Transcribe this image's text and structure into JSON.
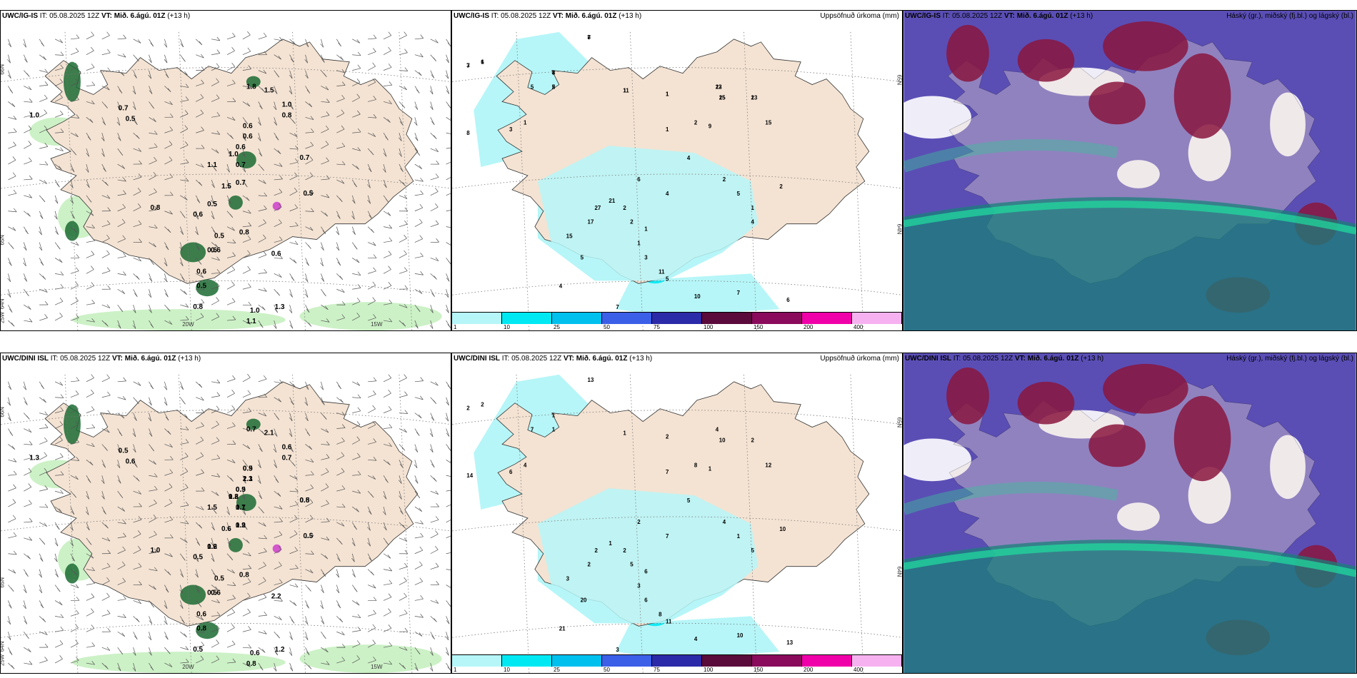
{
  "colors": {
    "land": "#f4e3d3",
    "light_green": "#c6efc0",
    "dark_green": "#1b6b32",
    "cyan_light": "#b6f6f8",
    "cyan": "#00e9f3",
    "purple_bg": "#5a4eb5",
    "maroon": "#8a163e",
    "teal": "#1a7f7a",
    "magenta": "#cc33cc"
  },
  "panels": [
    {
      "id": "top-left",
      "model": "UWC/IG-IS",
      "it_label": "IT:",
      "it_value": "05.08.2025 12Z",
      "vt_label": "VT:",
      "vt_value": "Mið. 6.ágú. 01Z",
      "lead": "(+13 h)",
      "right_title": "",
      "grid_labels": [
        "66N",
        "65N",
        "64N",
        "20W",
        "15W",
        "25W"
      ],
      "values": [
        "0.6",
        "0.6",
        "0.6",
        "1.0",
        "0.7",
        "0.7",
        "0.7",
        "0.5",
        "0.8",
        "0.6",
        "0.8",
        "0.6",
        "1.1",
        "1.0",
        "0.8",
        "0.7",
        "0.5",
        "0.5",
        "1.5",
        "1.5",
        "0.6",
        "0.6",
        "0.5",
        "0.8",
        "1.0",
        "1.1",
        "1.3",
        "0.6",
        "0.5",
        "1.0",
        "1.8"
      ]
    },
    {
      "id": "top-middle",
      "model": "UWC/IG-IS",
      "it_label": "IT:",
      "it_value": "05.08.2025 12Z",
      "vt_label": "VT:",
      "vt_value": "Mið. 6.ágú. 01Z",
      "lead": "(+13 h)",
      "right_title": "Uppsöfnuð úrkoma (mm)",
      "grid_labels": [
        "65N",
        "64N"
      ],
      "values": [
        "7",
        "3",
        "1",
        "4",
        "5",
        "23",
        "25",
        "2",
        "1",
        "1",
        "2",
        "1",
        "9",
        "8",
        "15",
        "2",
        "1",
        "2",
        "4",
        "4",
        "6",
        "2",
        "1",
        "3",
        "11",
        "5",
        "10",
        "7",
        "7",
        "6",
        "5",
        "4",
        "15",
        "17",
        "27",
        "21",
        "2",
        "1",
        "1",
        "5",
        "3",
        "5",
        "4",
        "8",
        "7",
        "6",
        "3",
        "2",
        "12",
        "15",
        "13",
        "11",
        "1"
      ],
      "colorbar_ticks": [
        "1",
        "10",
        "25",
        "50",
        "75",
        "100",
        "150",
        "200",
        "400"
      ]
    },
    {
      "id": "top-right",
      "model": "UWC/IG-IS",
      "it_label": "IT:",
      "it_value": "05.08.2025 12Z",
      "vt_label": "VT:",
      "vt_value": "Mið. 6.ágú. 01Z",
      "lead": "(+13 h)",
      "right_title": "Háský (gr.), miðský (fj.bl.) og lágský (bl.)"
    },
    {
      "id": "bottom-left",
      "model": "UWC/DINI ISL",
      "it_label": "IT:",
      "it_value": "05.08.2025 12Z",
      "vt_label": "VT:",
      "vt_value": "Mið. 6.ágú. 01Z",
      "lead": "(+13 h)",
      "right_title": "",
      "grid_labels": [
        "66N",
        "65N",
        "64N",
        "20W",
        "15W",
        "25W"
      ],
      "values": [
        "0.9",
        "1.3",
        "0.9",
        "1.2",
        "1.1",
        "0.8",
        "1.2",
        "0.6",
        "1.0",
        "0.5",
        "0.8",
        "2.2",
        "1.5",
        "0.6",
        "0.7",
        "0.5",
        "0.6",
        "0.5",
        "2.1",
        "0.6",
        "0.5",
        "0.6",
        "0.8",
        "0.5",
        "0.6",
        "0.8",
        "1.2",
        "0.6",
        "0.5",
        "1.3",
        "0.7",
        "0.5",
        "2.1",
        "0.5",
        "0.8",
        "0.7",
        "0.5",
        "0.9",
        "1.2"
      ]
    },
    {
      "id": "bottom-middle",
      "model": "UWC/DINI ISL",
      "it_label": "IT:",
      "it_value": "05.08.2025 12Z",
      "vt_label": "VT:",
      "vt_value": "Mið. 6.ágú. 01Z",
      "lead": "(+13 h)",
      "right_title": "Uppsöfnuð úrkoma (mm)",
      "grid_labels": [
        "65N",
        "64N"
      ],
      "values": [
        "13",
        "2",
        "2",
        "1",
        "1",
        "4",
        "10",
        "2",
        "1",
        "2",
        "8",
        "7",
        "1",
        "14",
        "12",
        "10",
        "5",
        "4",
        "7",
        "5",
        "2",
        "2",
        "3",
        "6",
        "8",
        "11",
        "4",
        "3",
        "10",
        "13",
        "20",
        "21",
        "3",
        "2",
        "2",
        "1",
        "5",
        "6",
        "4",
        "7",
        "6",
        "1"
      ],
      "colorbar_ticks": [
        "1",
        "10",
        "25",
        "50",
        "75",
        "100",
        "150",
        "200",
        "400"
      ]
    },
    {
      "id": "bottom-right",
      "model": "UWC/DINI ISL",
      "it_label": "IT:",
      "it_value": "05.08.2025 12Z",
      "vt_label": "VT:",
      "vt_value": "Mið. 6.ágú. 01Z",
      "lead": "(+13 h)",
      "right_title": "Háský (gr.), miðský (fj.bl.) og lágský (bl.)"
    }
  ]
}
